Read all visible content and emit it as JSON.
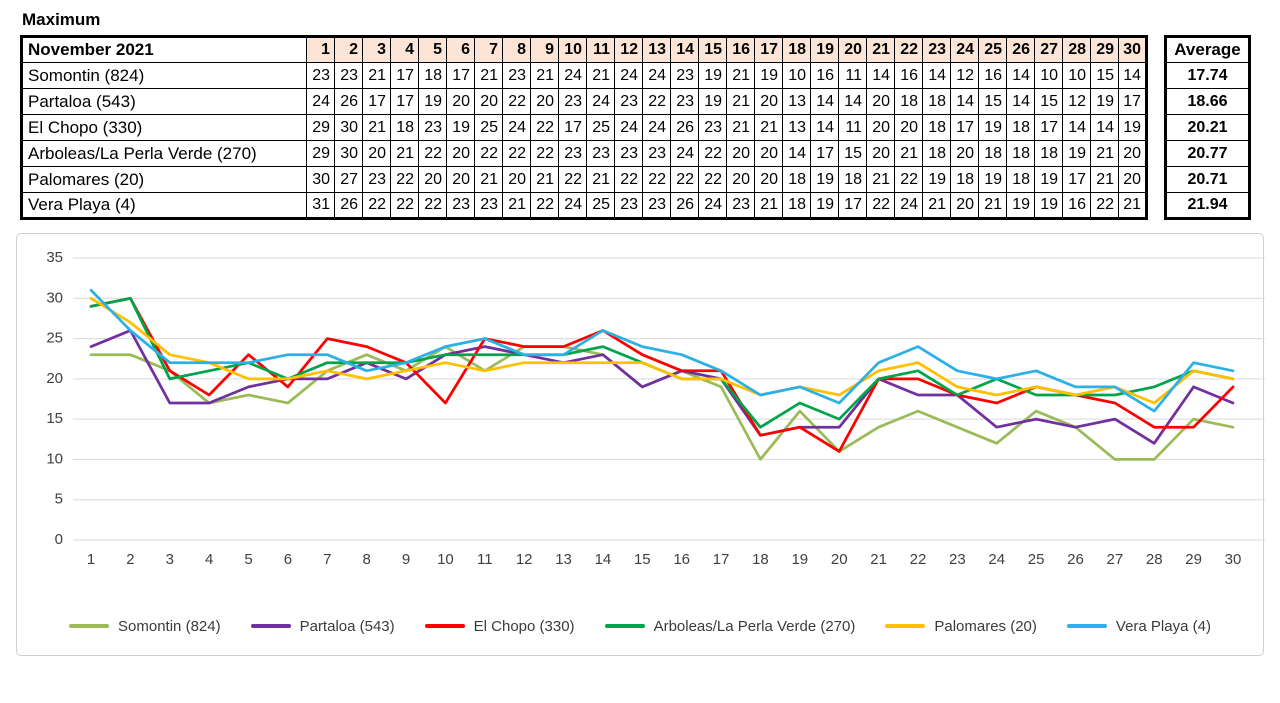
{
  "page_title": "Maximum",
  "table": {
    "header": "November 2021",
    "average_header": "Average",
    "days": [
      1,
      2,
      3,
      4,
      5,
      6,
      7,
      8,
      9,
      10,
      11,
      12,
      13,
      14,
      15,
      16,
      17,
      18,
      19,
      20,
      21,
      22,
      23,
      24,
      25,
      26,
      27,
      28,
      29,
      30
    ],
    "rows": [
      {
        "name": "Somontin (824)",
        "values": [
          23,
          23,
          21,
          17,
          18,
          17,
          21,
          23,
          21,
          24,
          21,
          24,
          24,
          23,
          19,
          21,
          19,
          10,
          16,
          11,
          14,
          16,
          14,
          12,
          16,
          14,
          10,
          10,
          15,
          14
        ],
        "average": "17.74"
      },
      {
        "name": "Partaloa (543)",
        "values": [
          24,
          26,
          17,
          17,
          19,
          20,
          20,
          22,
          20,
          23,
          24,
          23,
          22,
          23,
          19,
          21,
          20,
          13,
          14,
          14,
          20,
          18,
          18,
          14,
          15,
          14,
          15,
          12,
          19,
          17
        ],
        "average": "18.66"
      },
      {
        "name": "El Chopo (330)",
        "values": [
          29,
          30,
          21,
          18,
          23,
          19,
          25,
          24,
          22,
          17,
          25,
          24,
          24,
          26,
          23,
          21,
          21,
          13,
          14,
          11,
          20,
          20,
          18,
          17,
          19,
          18,
          17,
          14,
          14,
          19
        ],
        "average": "20.21"
      },
      {
        "name": "Arboleas/La Perla Verde (270)",
        "values": [
          29,
          30,
          20,
          21,
          22,
          20,
          22,
          22,
          22,
          23,
          23,
          23,
          23,
          24,
          22,
          20,
          20,
          14,
          17,
          15,
          20,
          21,
          18,
          20,
          18,
          18,
          18,
          19,
          21,
          20
        ],
        "average": "20.77"
      },
      {
        "name": "Palomares (20)",
        "values": [
          30,
          27,
          23,
          22,
          20,
          20,
          21,
          20,
          21,
          22,
          21,
          22,
          22,
          22,
          22,
          20,
          20,
          18,
          19,
          18,
          21,
          22,
          19,
          18,
          19,
          18,
          19,
          17,
          21,
          20
        ],
        "average": "20.71"
      },
      {
        "name": "Vera Playa (4)",
        "values": [
          31,
          26,
          22,
          22,
          22,
          23,
          23,
          21,
          22,
          24,
          25,
          23,
          23,
          26,
          24,
          23,
          21,
          18,
          19,
          17,
          22,
          24,
          21,
          20,
          21,
          19,
          19,
          16,
          22,
          21
        ],
        "average": "21.94"
      }
    ]
  },
  "chart_data": {
    "type": "line",
    "x": [
      1,
      2,
      3,
      4,
      5,
      6,
      7,
      8,
      9,
      10,
      11,
      12,
      13,
      14,
      15,
      16,
      17,
      18,
      19,
      20,
      21,
      22,
      23,
      24,
      25,
      26,
      27,
      28,
      29,
      30
    ],
    "series": [
      {
        "name": "Somontin (824)",
        "color": "#9BBB59",
        "values": [
          23,
          23,
          21,
          17,
          18,
          17,
          21,
          23,
          21,
          24,
          21,
          24,
          24,
          23,
          19,
          21,
          19,
          10,
          16,
          11,
          14,
          16,
          14,
          12,
          16,
          14,
          10,
          10,
          15,
          14
        ]
      },
      {
        "name": "Partaloa (543)",
        "color": "#7030A0",
        "values": [
          24,
          26,
          17,
          17,
          19,
          20,
          20,
          22,
          20,
          23,
          24,
          23,
          22,
          23,
          19,
          21,
          20,
          13,
          14,
          14,
          20,
          18,
          18,
          14,
          15,
          14,
          15,
          12,
          19,
          17
        ]
      },
      {
        "name": "El Chopo (330)",
        "color": "#FF0000",
        "values": [
          29,
          30,
          21,
          18,
          23,
          19,
          25,
          24,
          22,
          17,
          25,
          24,
          24,
          26,
          23,
          21,
          21,
          13,
          14,
          11,
          20,
          20,
          18,
          17,
          19,
          18,
          17,
          14,
          14,
          19
        ]
      },
      {
        "name": "Arboleas/La Perla Verde (270)",
        "color": "#00A44A",
        "values": [
          29,
          30,
          20,
          21,
          22,
          20,
          22,
          22,
          22,
          23,
          23,
          23,
          23,
          24,
          22,
          20,
          20,
          14,
          17,
          15,
          20,
          21,
          18,
          20,
          18,
          18,
          18,
          19,
          21,
          20
        ]
      },
      {
        "name": "Palomares (20)",
        "color": "#FFC000",
        "values": [
          30,
          27,
          23,
          22,
          20,
          20,
          21,
          20,
          21,
          22,
          21,
          22,
          22,
          22,
          22,
          20,
          20,
          18,
          19,
          18,
          21,
          22,
          19,
          18,
          19,
          18,
          19,
          17,
          21,
          20
        ]
      },
      {
        "name": "Vera Playa (4)",
        "color": "#2BB0E8",
        "values": [
          31,
          26,
          22,
          22,
          22,
          23,
          23,
          21,
          22,
          24,
          25,
          23,
          23,
          26,
          24,
          23,
          21,
          18,
          19,
          17,
          22,
          24,
          21,
          20,
          21,
          19,
          19,
          16,
          22,
          21
        ]
      }
    ],
    "ylim": [
      0,
      35
    ],
    "yticks": [
      0,
      5,
      10,
      15,
      20,
      25,
      30,
      35
    ],
    "grid": true,
    "legend_position": "bottom"
  }
}
